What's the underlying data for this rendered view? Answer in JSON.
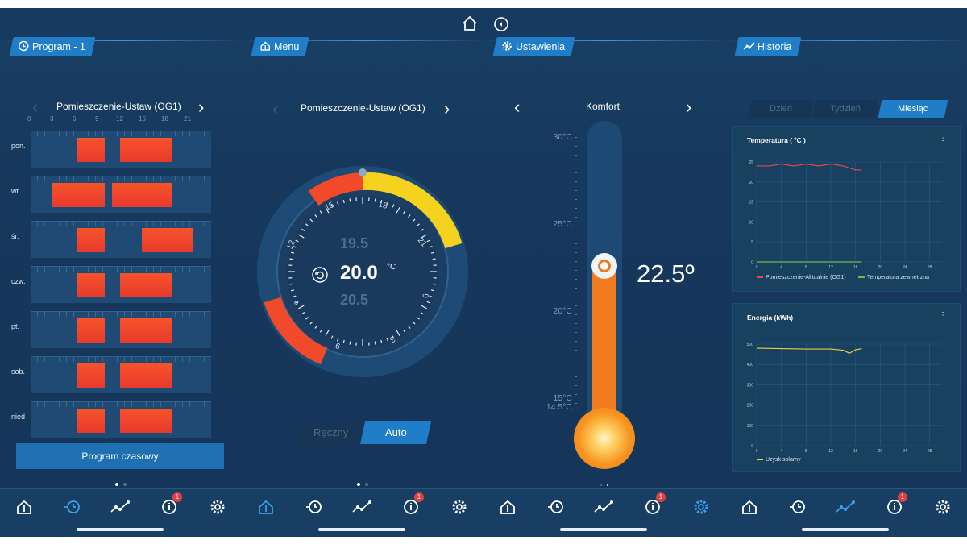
{
  "colors": {
    "accent": "#1f7ec7",
    "heat": "#f04a2b",
    "comfort": "#f5d21e",
    "thermo": "#f27a1e",
    "badge": "#e2403f"
  },
  "top_icons": [
    "home-icon",
    "back-circle-icon"
  ],
  "panel1": {
    "tab": "Program - 1",
    "room": "Pomieszczenie-Ustaw (OG1)",
    "hours": [
      "0",
      "3",
      "6",
      "9",
      "12",
      "15",
      "18",
      "21"
    ],
    "days": [
      "pon.",
      "wt.",
      "śr.",
      "czw.",
      "pt.",
      "sob.",
      "nied"
    ],
    "button": "Program czasowy"
  },
  "panel2": {
    "tab": "Menu",
    "room": "Pomieszczenie-Ustaw (OG1)",
    "value_above": "19.5",
    "value_current": "20.0",
    "unit": "°C",
    "value_below": "20.5",
    "dial_numbers": [
      "15",
      "18",
      "21",
      "12",
      "9",
      "6",
      "3"
    ],
    "toggle": {
      "manual": "Ręczny",
      "auto": "Auto"
    }
  },
  "panel3": {
    "tab": "Ustawienia",
    "mode": "Komfort",
    "scale": [
      "30°C",
      "25°C",
      "20°C",
      "15°C",
      "14.5°C"
    ],
    "reading": "22.5º"
  },
  "panel4": {
    "tab": "Historia",
    "periods": [
      "Dzień",
      "Tydzień",
      "Miesiąc"
    ],
    "active_period": "Miesiąc",
    "temp_chart": {
      "title": "Temperatura ( ºC )",
      "y_ticks": [
        "25",
        "20",
        "15",
        "10",
        "5",
        "0"
      ],
      "x_ticks": [
        "0",
        "4",
        "8",
        "12",
        "16",
        "20",
        "24",
        "28"
      ],
      "legend": [
        "Pomieszczenie-Aktualnie (OG1)",
        "Temperatura zewnętrzna"
      ]
    },
    "energy_chart": {
      "title": "Energia (kWh)",
      "y_ticks": [
        "500",
        "400",
        "300",
        "200",
        "100",
        "0"
      ],
      "x_ticks": [
        "0",
        "4",
        "8",
        "12",
        "16",
        "20",
        "24",
        "28"
      ],
      "legend": [
        "Uzysk solarny"
      ]
    }
  },
  "chart_data": [
    {
      "type": "line",
      "title": "Temperatura ( ºC )",
      "ylim": [
        0,
        25
      ],
      "xlim": [
        0,
        30
      ],
      "series": [
        {
          "name": "Pomieszczenie-Aktualnie (OG1)",
          "color": "#e0485a",
          "x": [
            0,
            2,
            4,
            6,
            8,
            10,
            12,
            14,
            16,
            17
          ],
          "y": [
            24,
            24,
            24.5,
            24,
            24.5,
            24,
            24.5,
            24,
            23,
            23
          ]
        },
        {
          "name": "Temperatura zewnętrzna",
          "color": "#6ac24b",
          "x": [
            0,
            17
          ],
          "y": [
            0,
            0
          ]
        }
      ]
    },
    {
      "type": "line",
      "title": "Energia (kWh)",
      "ylim": [
        0,
        500
      ],
      "xlim": [
        0,
        30
      ],
      "series": [
        {
          "name": "Uzysk solarny",
          "color": "#e8d13a",
          "x": [
            0,
            4,
            8,
            12,
            14,
            15,
            16,
            17
          ],
          "y": [
            480,
            478,
            476,
            476,
            470,
            455,
            472,
            478
          ]
        }
      ]
    }
  ],
  "bottom_nav": {
    "items": [
      "home-icon",
      "clock-icon",
      "history-icon",
      "info-icon",
      "gear-icon"
    ],
    "badge": "1",
    "active": [
      1,
      0,
      4,
      2
    ]
  }
}
